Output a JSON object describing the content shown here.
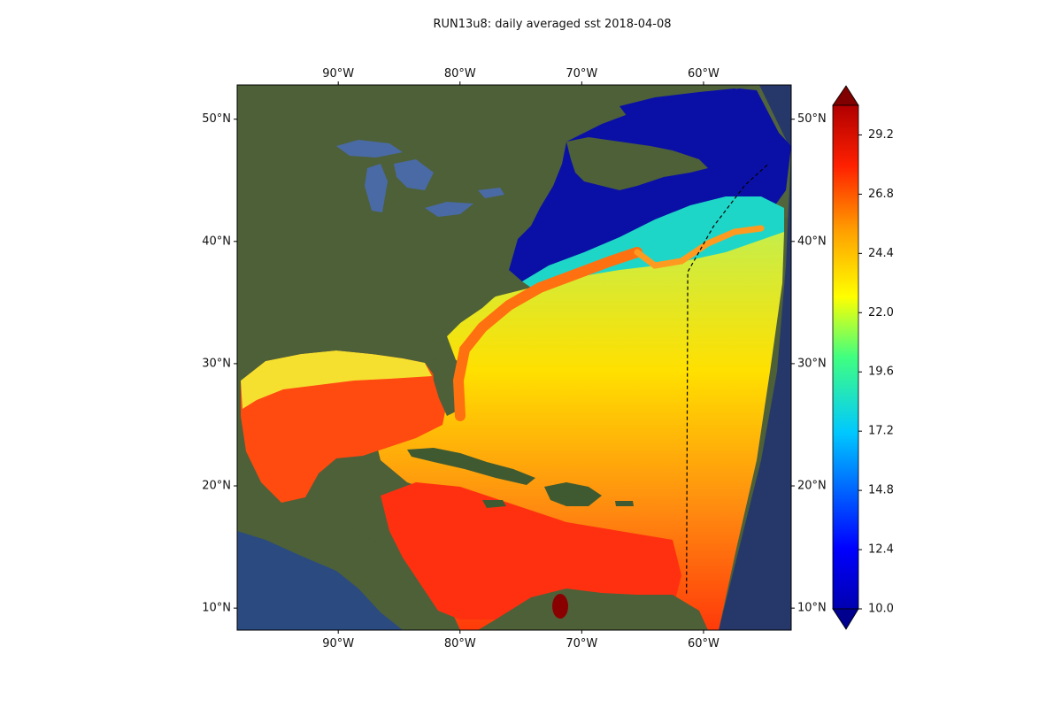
{
  "title": "RUN13u8: daily averaged sst 2018-04-08",
  "map": {
    "lon_range": [
      -98.3,
      -52.8
    ],
    "lat_range": [
      8.2,
      52.8
    ],
    "lon_ticks": [
      {
        "value": -90,
        "label": "90°W"
      },
      {
        "value": -80,
        "label": "80°W"
      },
      {
        "value": -70,
        "label": "70°W"
      },
      {
        "value": -60,
        "label": "60°W"
      }
    ],
    "lat_ticks": [
      {
        "value": 50,
        "label": "50°N"
      },
      {
        "value": 40,
        "label": "40°N"
      },
      {
        "value": 30,
        "label": "30°N"
      },
      {
        "value": 20,
        "label": "20°N"
      },
      {
        "value": 10,
        "label": "10°N"
      }
    ],
    "boundary_line": [
      [
        -61.4,
        11.2
      ],
      [
        -61.3,
        37.5
      ],
      [
        -59.2,
        41.2
      ],
      [
        -56.6,
        44.6
      ],
      [
        -54.6,
        46.4
      ]
    ]
  },
  "colorbar": {
    "min": 10.0,
    "max": 30.4,
    "extend": "both",
    "colormap": "jet",
    "tick_values": [
      10.0,
      12.4,
      14.8,
      17.2,
      19.6,
      22.0,
      24.4,
      26.8,
      29.2
    ],
    "tick_labels": [
      "10.0",
      "12.4",
      "14.8",
      "17.2",
      "19.6",
      "22.0",
      "24.4",
      "26.8",
      "29.2"
    ],
    "under_color": "#00008f",
    "over_color": "#800000"
  },
  "colors": {
    "land": "#4a5d38",
    "deep_ocean": "#26386a",
    "cold_shelf": "#0a12a0",
    "gulf_stream": "#ff7a1a",
    "tropical": "#ff3a0a"
  }
}
